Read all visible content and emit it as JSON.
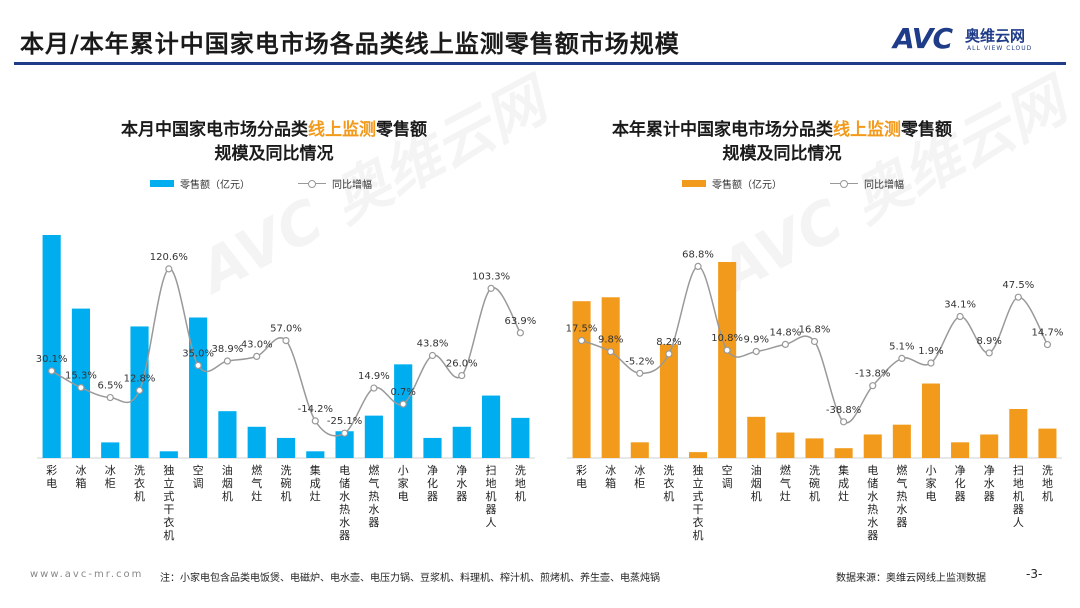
{
  "page": {
    "title": "本月/本年累计中国家电市场各品类线上监测零售额市场规模",
    "logo_text": "AVC",
    "logo_cn": "奥维云网",
    "logo_en": "ALL VIEW CLOUD",
    "watermark": "AVC 奥维云网",
    "brand_color": "#1f3c88"
  },
  "footer": {
    "url": "www.avc-mr.com",
    "note": "注：小家电包含品类电饭煲、电磁炉、电水壶、电压力锅、豆浆机、料理机、榨汁机、煎烤机、养生壶、电蒸炖锅",
    "source": "数据来源：奥维云网线上监测数据",
    "page_number": "-3-"
  },
  "charts": [
    {
      "title_part1": "本月中国家电市场分品类",
      "title_highlight": "线上监测",
      "title_part2": "零售额",
      "title_line2": "规模及同比情况",
      "legend_bar": "零售额（亿元）",
      "legend_line": "同比增幅"
    },
    {
      "title_part1": "本年累计中国家电市场分品类",
      "title_highlight": "线上监测",
      "title_part2": "零售额",
      "title_line2": "规模及同比情况",
      "legend_bar": "零售额（亿元）",
      "legend_line": "同比增幅"
    }
  ],
  "chart_data": [
    {
      "type": "bar",
      "title": "本月中国家电市场分品类线上监测零售额规模及同比情况",
      "categories": [
        "彩电",
        "冰箱",
        "冰柜",
        "洗衣机",
        "独立式干衣机",
        "空调",
        "油烟机",
        "燃气灶",
        "洗碗机",
        "集成灶",
        "电储水热水器",
        "燃气热水器",
        "小家电",
        "净化器",
        "净水器",
        "扫地机器人",
        "洗地机"
      ],
      "series": [
        {
          "name": "零售额（亿元）",
          "kind": "bar",
          "color": "#00aeef",
          "values": [
            100,
            67,
            7,
            59,
            3,
            63,
            21,
            14,
            9,
            3,
            12,
            19,
            42,
            9,
            14,
            28,
            18
          ]
        },
        {
          "name": "同比增幅",
          "kind": "line",
          "color": "#999999",
          "unit": "%",
          "values": [
            30.1,
            15.3,
            6.5,
            12.8,
            120.6,
            35.0,
            38.9,
            43.0,
            57.0,
            -14.2,
            -25.1,
            14.9,
            0.7,
            43.8,
            26.0,
            103.3,
            63.9
          ],
          "labels": [
            "30.1%",
            "15.3%",
            "6.5%",
            "12.8%",
            "120.6%",
            "35.0%",
            "38.9%",
            "43.0%",
            "57.0%",
            "-14.2%",
            "-25.1%",
            "14.9%",
            "0.7%",
            "43.8%",
            "26.0%",
            "103.3%",
            "63.9%"
          ]
        }
      ],
      "bar_range": [
        0,
        100
      ],
      "line_range": [
        -40,
        140
      ],
      "legend": "top"
    },
    {
      "type": "bar",
      "title": "本年累计中国家电市场分品类线上监测零售额规模及同比情况",
      "categories": [
        "彩电",
        "冰箱",
        "冰柜",
        "洗衣机",
        "独立式干衣机",
        "空调",
        "油烟机",
        "燃气灶",
        "洗碗机",
        "集成灶",
        "电储水热水器",
        "燃气热水器",
        "小家电",
        "净化器",
        "净水器",
        "扫地机器人",
        "洗地机"
      ],
      "series": [
        {
          "name": "零售额（亿元）",
          "kind": "bar",
          "color": "#f29a1b",
          "values": [
            80,
            82,
            8,
            58,
            3,
            100,
            21,
            13,
            10,
            5,
            12,
            17,
            38,
            8,
            12,
            25,
            15
          ]
        },
        {
          "name": "同比增幅",
          "kind": "line",
          "color": "#999999",
          "unit": "%",
          "values": [
            17.5,
            9.8,
            -5.2,
            8.2,
            68.8,
            10.8,
            9.9,
            14.8,
            16.8,
            -38.8,
            -13.8,
            5.1,
            1.9,
            34.1,
            8.9,
            47.5,
            14.7
          ],
          "labels": [
            "17.5%",
            "9.8%",
            "-5.2%",
            "8.2%",
            "68.8%",
            "10.8%",
            "9.9%",
            "14.8%",
            "16.8%",
            "-38.8%",
            "-13.8%",
            "5.1%",
            "1.9%",
            "34.1%",
            "8.9%",
            "47.5%",
            "14.7%"
          ]
        }
      ],
      "bar_range": [
        0,
        100
      ],
      "line_range": [
        -50,
        85
      ],
      "legend": "top"
    }
  ]
}
